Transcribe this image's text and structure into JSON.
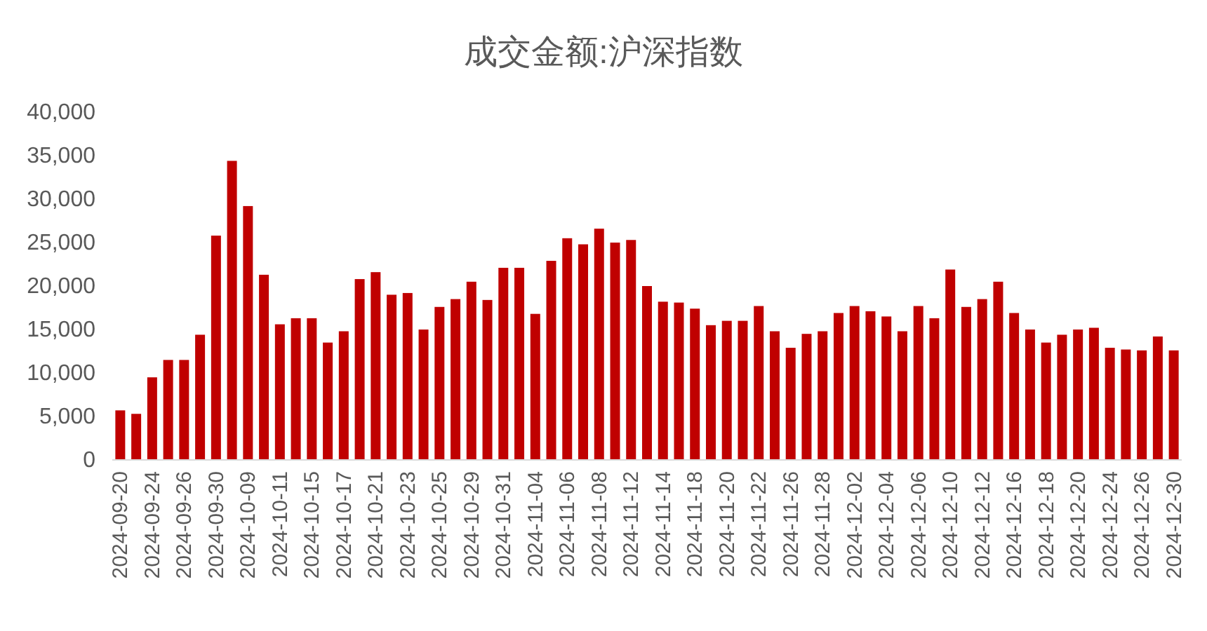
{
  "chart_data": {
    "type": "bar",
    "title": "成交金额:沪深指数",
    "categories": [
      "2024-09-20",
      null,
      "2024-09-24",
      null,
      "2024-09-26",
      null,
      "2024-09-30",
      null,
      "2024-10-09",
      null,
      "2024-10-11",
      null,
      "2024-10-15",
      null,
      "2024-10-17",
      null,
      "2024-10-21",
      null,
      "2024-10-23",
      null,
      "2024-10-25",
      null,
      "2024-10-29",
      null,
      "2024-10-31",
      null,
      "2024-11-04",
      null,
      "2024-11-06",
      null,
      "2024-11-08",
      null,
      "2024-11-12",
      null,
      "2024-11-14",
      null,
      "2024-11-18",
      null,
      "2024-11-20",
      null,
      "2024-11-22",
      null,
      "2024-11-26",
      null,
      "2024-11-28",
      null,
      "2024-12-02",
      null,
      "2024-12-04",
      null,
      "2024-12-06",
      null,
      "2024-12-10",
      null,
      "2024-12-12",
      null,
      "2024-12-16",
      null,
      "2024-12-18",
      null,
      "2024-12-20",
      null,
      "2024-12-24",
      null,
      "2024-12-26",
      null,
      "2024-12-30"
    ],
    "values": [
      5700,
      5300,
      9500,
      11500,
      11500,
      14400,
      25800,
      34400,
      29200,
      21300,
      15600,
      16300,
      16300,
      13500,
      14800,
      20800,
      21600,
      19000,
      19200,
      15000,
      17600,
      18500,
      20500,
      18400,
      22100,
      22100,
      16800,
      22900,
      25500,
      24800,
      26600,
      25000,
      25300,
      20000,
      18200,
      18100,
      17400,
      15500,
      16000,
      16000,
      17700,
      14800,
      12900,
      14500,
      14800,
      16900,
      17700,
      17100,
      16500,
      14800,
      17700,
      16300,
      21900,
      17600,
      18500,
      20500,
      16900,
      15000,
      13500,
      14400,
      15000,
      15200,
      12900,
      12700,
      12600,
      14200,
      12600
    ],
    "color": "#c00000",
    "ylim": [
      0,
      40000
    ],
    "yticks": [
      0,
      {
        "value": 5000,
        "label": "5,000"
      },
      {
        "value": 10000,
        "label": "10,000"
      },
      {
        "value": 15000,
        "label": "15,000"
      },
      {
        "value": 20000,
        "label": "20,000"
      },
      {
        "value": 25000,
        "label": "25,000"
      },
      {
        "value": 30000,
        "label": "30,000"
      },
      {
        "value": 35000,
        "label": "35,000"
      },
      {
        "value": 40000,
        "label": "40,000"
      }
    ]
  }
}
